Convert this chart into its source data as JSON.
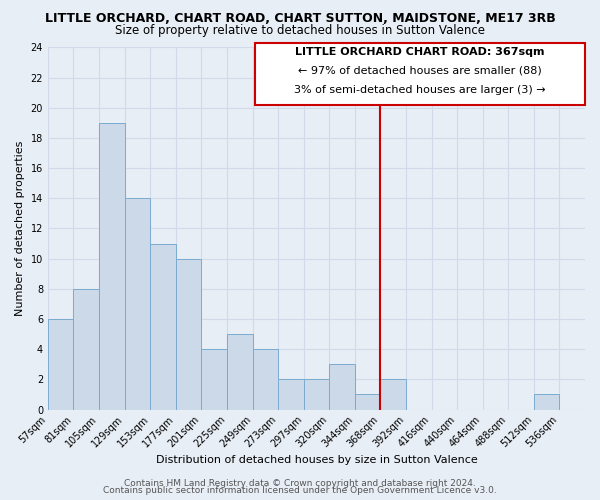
{
  "title": "LITTLE ORCHARD, CHART ROAD, CHART SUTTON, MAIDSTONE, ME17 3RB",
  "subtitle": "Size of property relative to detached houses in Sutton Valence",
  "xlabel": "Distribution of detached houses by size in Sutton Valence",
  "ylabel": "Number of detached properties",
  "bin_labels": [
    "57sqm",
    "81sqm",
    "105sqm",
    "129sqm",
    "153sqm",
    "177sqm",
    "201sqm",
    "225sqm",
    "249sqm",
    "273sqm",
    "297sqm",
    "320sqm",
    "344sqm",
    "368sqm",
    "392sqm",
    "416sqm",
    "440sqm",
    "464sqm",
    "488sqm",
    "512sqm",
    "536sqm"
  ],
  "counts": [
    6,
    8,
    19,
    14,
    11,
    10,
    4,
    5,
    4,
    2,
    2,
    3,
    1,
    2,
    0,
    0,
    0,
    0,
    0,
    1,
    0
  ],
  "bar_color": "#ccd9e8",
  "bar_edge_color": "#7aabcf",
  "vline_bin": 13,
  "vline_color": "#cc0000",
  "ylim": [
    0,
    24
  ],
  "yticks": [
    0,
    2,
    4,
    6,
    8,
    10,
    12,
    14,
    16,
    18,
    20,
    22,
    24
  ],
  "annotation_title": "LITTLE ORCHARD CHART ROAD: 367sqm",
  "annotation_line1": "← 97% of detached houses are smaller (88)",
  "annotation_line2": "3% of semi-detached houses are larger (3) →",
  "footer1": "Contains HM Land Registry data © Crown copyright and database right 2024.",
  "footer2": "Contains public sector information licensed under the Open Government Licence v3.0.",
  "background_color": "#e8eef5",
  "grid_color": "#d0dae8",
  "title_fontsize": 9,
  "subtitle_fontsize": 8.5,
  "axis_label_fontsize": 8,
  "tick_fontsize": 7,
  "annotation_fontsize": 8,
  "footer_fontsize": 6.5
}
